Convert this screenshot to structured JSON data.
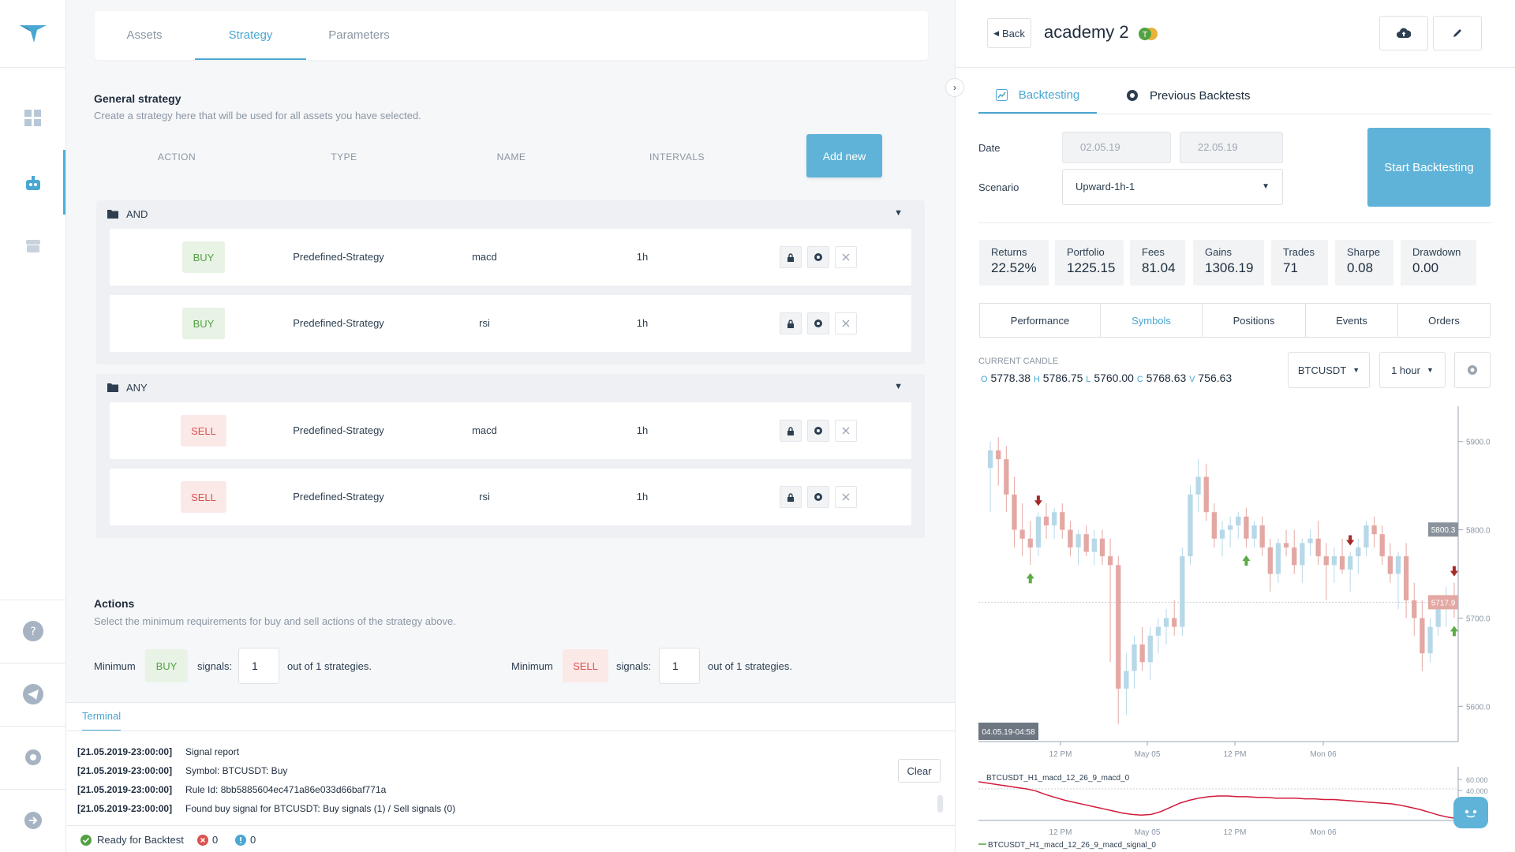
{
  "nav": {
    "icons": [
      "logo-icon",
      "dashboard-icon",
      "bot-icon",
      "store-icon",
      "help-icon",
      "telegram-icon",
      "settings-icon",
      "logout-icon"
    ]
  },
  "tabs": [
    "Assets",
    "Strategy",
    "Parameters"
  ],
  "general": {
    "title": "General strategy",
    "subtitle": "Create a strategy here that will be used for all assets you have selected.",
    "columns": [
      "ACTION",
      "TYPE",
      "NAME",
      "INTERVALS"
    ],
    "add_new": "Add new"
  },
  "groups": [
    {
      "label": "AND",
      "rows": [
        {
          "action": "BUY",
          "type": "Predefined-Strategy",
          "name": "macd",
          "interval": "1h"
        },
        {
          "action": "BUY",
          "type": "Predefined-Strategy",
          "name": "rsi",
          "interval": "1h"
        }
      ]
    },
    {
      "label": "ANY",
      "rows": [
        {
          "action": "SELL",
          "type": "Predefined-Strategy",
          "name": "macd",
          "interval": "1h"
        },
        {
          "action": "SELL",
          "type": "Predefined-Strategy",
          "name": "rsi",
          "interval": "1h"
        }
      ]
    }
  ],
  "actions": {
    "title": "Actions",
    "subtitle": "Select the minimum requirements for buy and sell actions of the strategy above.",
    "minimum": "Minimum",
    "signals": "signals:",
    "buy": "BUY",
    "sell": "SELL",
    "buy_value": "1",
    "sell_value": "1",
    "out_of": "out of 1 strategies."
  },
  "terminal": {
    "tab": "Terminal",
    "clear": "Clear",
    "lines": [
      {
        "ts": "[21.05.2019-23:00:00]",
        "msg": "Signal report"
      },
      {
        "ts": "[21.05.2019-23:00:00]",
        "msg": "Symbol: BTCUSDT: Buy"
      },
      {
        "ts": "[21.05.2019-23:00:00]",
        "msg": "Rule Id: 8bb5885604ec471a86e033d66baf771a"
      },
      {
        "ts": "[21.05.2019-23:00:00]",
        "msg": "Found buy signal for BTCUSDT: Buy signals (1) / Sell signals (0)"
      }
    ]
  },
  "status": {
    "ready": "Ready for Backtest",
    "errors": "0",
    "warnings": "0"
  },
  "right": {
    "back": "Back",
    "title": "academy 2",
    "tab_backtesting": "Backtesting",
    "tab_previous": "Previous Backtests",
    "date_label": "Date",
    "date_from": "02.05.19",
    "date_to": "22.05.19",
    "scenario_label": "Scenario",
    "scenario_value": "Upward-1h-1",
    "start": "Start Backtesting",
    "stats": [
      {
        "k": "Returns",
        "v": "22.52%"
      },
      {
        "k": "Portfolio",
        "v": "1225.15"
      },
      {
        "k": "Fees",
        "v": "81.04"
      },
      {
        "k": "Gains",
        "v": "1306.19"
      },
      {
        "k": "Trades",
        "v": "71"
      },
      {
        "k": "Sharpe",
        "v": "0.08"
      },
      {
        "k": "Drawdown",
        "v": "0.00"
      }
    ],
    "view_tabs": [
      "Performance",
      "Symbols",
      "Positions",
      "Events",
      "Orders"
    ],
    "candle_title": "CURRENT CANDLE",
    "candle": {
      "o": "5778.38",
      "h": "5786.75",
      "l": "5760.00",
      "c": "5768.63",
      "v": "756.63"
    },
    "symbol": "BTCUSDT",
    "interval": "1 hour"
  },
  "chart_data": {
    "type": "candlestick",
    "y_ticks": [
      "5900.0",
      "5800.0",
      "5700.0",
      "5600.0"
    ],
    "ylim": [
      5560,
      5940
    ],
    "x_ticks": [
      "12 PM",
      "May 05",
      "12 PM",
      "Mon 06"
    ],
    "crosshair_label": "04.05.19-04:58",
    "price_label_1": "5800.3",
    "price_label_2": "5717.9",
    "candles": [
      [
        5870,
        5900,
        5820,
        5890
      ],
      [
        5890,
        5905,
        5850,
        5880
      ],
      [
        5880,
        5895,
        5820,
        5840
      ],
      [
        5840,
        5860,
        5780,
        5800
      ],
      [
        5800,
        5830,
        5770,
        5790
      ],
      [
        5790,
        5810,
        5760,
        5780
      ],
      [
        5780,
        5820,
        5770,
        5815
      ],
      [
        5815,
        5830,
        5790,
        5805
      ],
      [
        5805,
        5825,
        5790,
        5820
      ],
      [
        5820,
        5830,
        5790,
        5800
      ],
      [
        5800,
        5810,
        5770,
        5780
      ],
      [
        5780,
        5800,
        5760,
        5795
      ],
      [
        5795,
        5805,
        5770,
        5775
      ],
      [
        5775,
        5800,
        5760,
        5790
      ],
      [
        5790,
        5800,
        5760,
        5770
      ],
      [
        5770,
        5790,
        5650,
        5760
      ],
      [
        5760,
        5770,
        5580,
        5620
      ],
      [
        5620,
        5660,
        5590,
        5640
      ],
      [
        5640,
        5680,
        5620,
        5670
      ],
      [
        5670,
        5690,
        5640,
        5650
      ],
      [
        5650,
        5690,
        5630,
        5680
      ],
      [
        5680,
        5700,
        5660,
        5690
      ],
      [
        5690,
        5710,
        5670,
        5700
      ],
      [
        5700,
        5720,
        5680,
        5690
      ],
      [
        5690,
        5780,
        5680,
        5770
      ],
      [
        5770,
        5850,
        5760,
        5840
      ],
      [
        5840,
        5880,
        5820,
        5860
      ],
      [
        5860,
        5875,
        5810,
        5820
      ],
      [
        5820,
        5830,
        5780,
        5790
      ],
      [
        5790,
        5810,
        5770,
        5800
      ],
      [
        5800,
        5815,
        5780,
        5805
      ],
      [
        5805,
        5820,
        5790,
        5815
      ],
      [
        5815,
        5825,
        5780,
        5790
      ],
      [
        5790,
        5810,
        5780,
        5805
      ],
      [
        5805,
        5815,
        5770,
        5780
      ],
      [
        5780,
        5790,
        5730,
        5750
      ],
      [
        5750,
        5790,
        5740,
        5785
      ],
      [
        5785,
        5800,
        5770,
        5780
      ],
      [
        5780,
        5800,
        5750,
        5760
      ],
      [
        5760,
        5790,
        5740,
        5785
      ],
      [
        5785,
        5800,
        5770,
        5790
      ],
      [
        5790,
        5810,
        5760,
        5770
      ],
      [
        5770,
        5785,
        5720,
        5760
      ],
      [
        5760,
        5780,
        5740,
        5770
      ],
      [
        5770,
        5790,
        5750,
        5755
      ],
      [
        5755,
        5775,
        5730,
        5770
      ],
      [
        5770,
        5790,
        5750,
        5780
      ],
      [
        5780,
        5810,
        5770,
        5805
      ],
      [
        5805,
        5815,
        5780,
        5795
      ],
      [
        5795,
        5805,
        5760,
        5770
      ],
      [
        5770,
        5785,
        5740,
        5750
      ],
      [
        5750,
        5775,
        5710,
        5770
      ],
      [
        5770,
        5785,
        5700,
        5720
      ],
      [
        5720,
        5740,
        5680,
        5700
      ],
      [
        5700,
        5720,
        5640,
        5660
      ],
      [
        5660,
        5700,
        5650,
        5690
      ],
      [
        5690,
        5720,
        5680,
        5710
      ],
      [
        5710,
        5735,
        5690,
        5725
      ],
      [
        5725,
        5740,
        5700,
        5718
      ]
    ],
    "buy_markers": [
      5,
      32,
      59
    ],
    "sell_markers": [
      6,
      45,
      63
    ],
    "indicator_name": "BTCUSDT_H1_macd_12_26_9_macd_0",
    "indicator_y_ticks": [
      "60.000",
      "40.000",
      "20.000"
    ],
    "indicator_values": [
      30,
      28,
      26,
      24,
      22,
      20,
      17,
      12,
      8,
      4,
      1,
      -2,
      -5,
      -8,
      -11,
      -14,
      -16,
      -17,
      -16,
      -12,
      -6,
      0,
      4,
      7,
      9,
      10,
      10,
      9,
      9,
      8,
      8,
      7,
      7,
      7,
      6,
      6,
      5,
      5,
      4,
      3,
      2,
      1,
      0,
      -1,
      -3,
      -6,
      -9,
      -13,
      -17,
      -20,
      -22
    ],
    "indicator2_name": "BTCUSDT_H1_macd_12_26_9_macd_signal_0"
  }
}
